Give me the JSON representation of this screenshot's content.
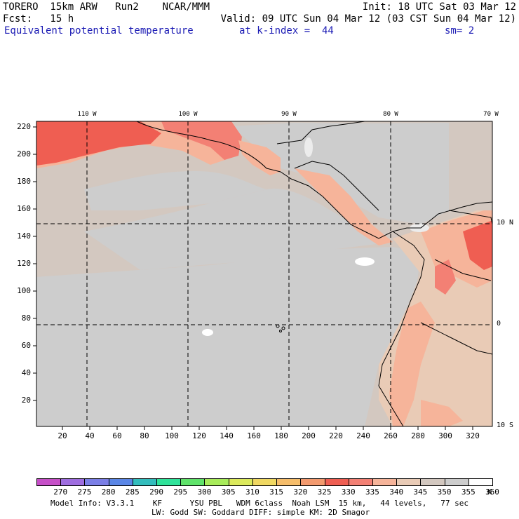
{
  "header": {
    "line1_left": "TORERO  15km ARW   Run2    NCAR/MMM",
    "line1_right": "Init: 18 UTC Sat 03 Mar 12",
    "line2_left": "Fcst:   15 h",
    "line2_right": "Valid: 09 UTC Sun 04 Mar 12 (03 CST Sun 04 Mar 12)",
    "field_name": "Equivalent potential temperature",
    "level": "at k-index =  44",
    "smoothing": "sm= 2"
  },
  "map": {
    "longitude_labels": [
      "110 W",
      "100 W",
      "90 W",
      "80 W",
      "70 W"
    ],
    "latitude_labels": [
      "10 N",
      "0",
      "10 S"
    ],
    "y_ticks": [
      "220",
      "200",
      "180",
      "160",
      "140",
      "120",
      "100",
      "80",
      "60",
      "40",
      "20"
    ],
    "x_ticks": [
      "20",
      "40",
      "60",
      "80",
      "100",
      "120",
      "140",
      "160",
      "180",
      "200",
      "220",
      "240",
      "260",
      "280",
      "300",
      "320"
    ]
  },
  "colorbar": {
    "levels": [
      "270",
      "275",
      "280",
      "285",
      "290",
      "295",
      "300",
      "305",
      "310",
      "315",
      "320",
      "325",
      "330",
      "335",
      "340",
      "345",
      "350",
      "355",
      "360"
    ],
    "unit": "K",
    "colors": [
      "#c64fc8",
      "#9f6de0",
      "#7a7ee6",
      "#5a86e6",
      "#33bdbd",
      "#2fe39a",
      "#5fe36a",
      "#a8ec5a",
      "#dcea5c",
      "#f0d862",
      "#f6bd6a",
      "#f39a6e",
      "#ef5e52",
      "#f38074",
      "#f6b49a",
      "#e9cbb6",
      "#d3c8c0",
      "#cdcdcd",
      "#ffffff"
    ]
  },
  "footer": {
    "line1": "Model Info: V3.3.1    KF      YSU PBL   WDM 6class  Noah LSM  15 km,   44 levels,   77 sec",
    "line2": "LW: Godd SW: Goddard DIFF: simple KM: 2D Smagor"
  }
}
